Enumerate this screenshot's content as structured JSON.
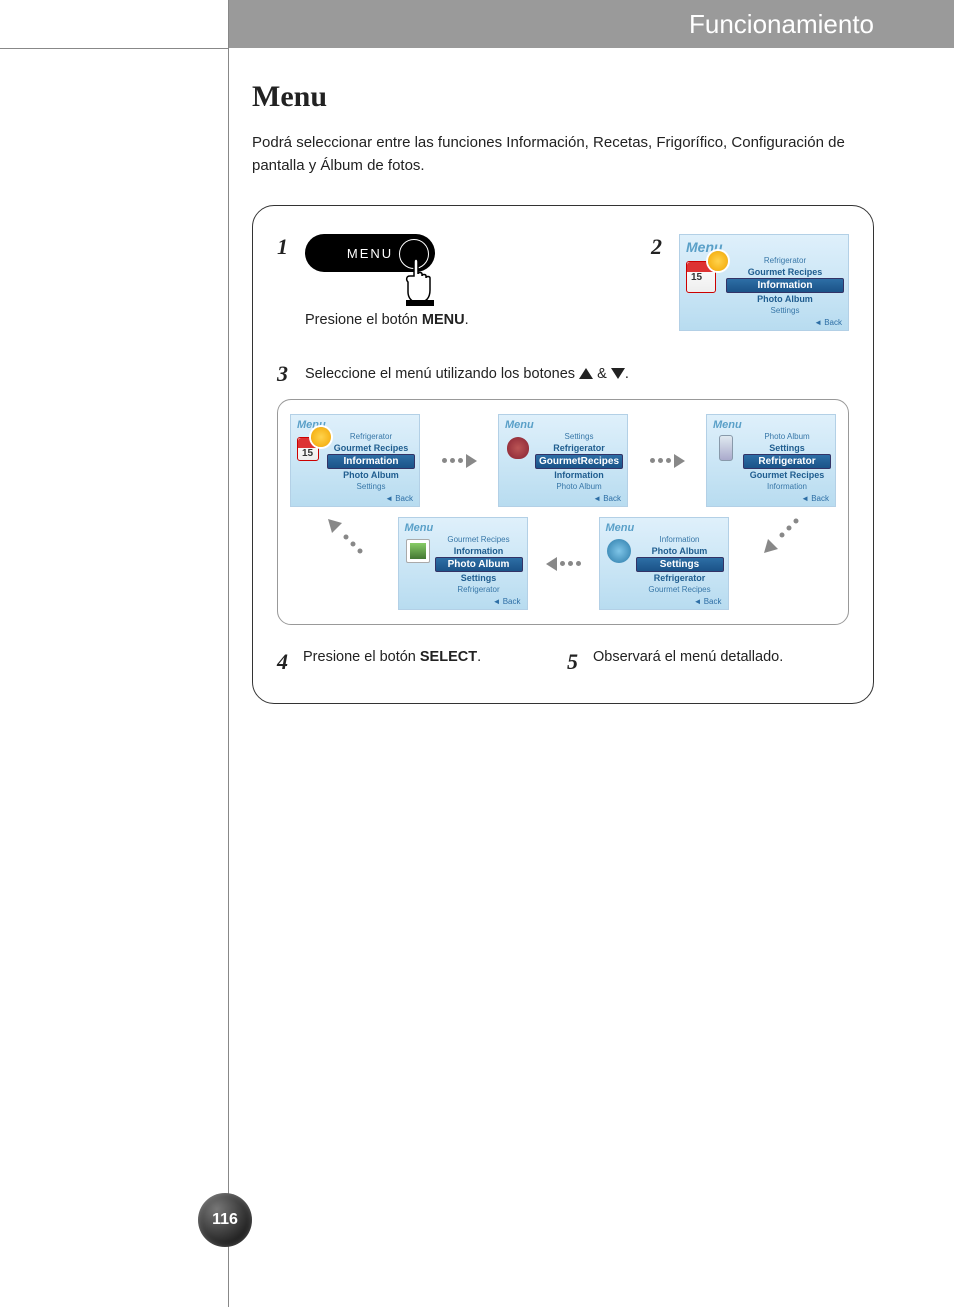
{
  "header": {
    "title": "Funcionamiento"
  },
  "page": {
    "title": "Menu",
    "intro": "Podrá seleccionar entre las funciones Información, Recetas, Frigorífico, Configuración de pantalla y Álbum de fotos.",
    "number": "116"
  },
  "steps": {
    "s1": {
      "num": "1",
      "button_label": "MENU",
      "caption_pre": "Presione el botón ",
      "caption_bold": "MENU",
      "caption_post": "."
    },
    "s2": {
      "num": "2"
    },
    "s3": {
      "num": "3",
      "text_pre": "Seleccione el menú utilizando los botones ",
      "amp": " & ",
      "dot": "."
    },
    "s4": {
      "num": "4",
      "text_pre": "Presione el botón ",
      "text_bold": "SELECT",
      "text_post": "."
    },
    "s5": {
      "num": "5",
      "text": "Observará el menú detallado."
    }
  },
  "menu_title": "Menu",
  "back_label": "◄ Back",
  "screens": {
    "main": {
      "items": [
        {
          "label": "Refrigerator",
          "cls": "mi-light"
        },
        {
          "label": "Gourmet Recipes",
          "cls": "mi-med"
        },
        {
          "label": "Information",
          "cls": "mi-sel"
        },
        {
          "label": "Photo Album",
          "cls": "mi-med"
        },
        {
          "label": "Settings",
          "cls": "mi-light"
        }
      ]
    },
    "a": {
      "items": [
        {
          "label": "Refrigerator",
          "cls": "mi-light"
        },
        {
          "label": "Gourmet Recipes",
          "cls": "mi-med"
        },
        {
          "label": "Information",
          "cls": "mi-sel"
        },
        {
          "label": "Photo Album",
          "cls": "mi-med"
        },
        {
          "label": "Settings",
          "cls": "mi-light"
        }
      ]
    },
    "b": {
      "items": [
        {
          "label": "Settings",
          "cls": "mi-light"
        },
        {
          "label": "Refrigerator",
          "cls": "mi-med"
        },
        {
          "label": "GourmetRecipes",
          "cls": "mi-sel"
        },
        {
          "label": "Information",
          "cls": "mi-med"
        },
        {
          "label": "Photo Album",
          "cls": "mi-light"
        }
      ]
    },
    "c": {
      "items": [
        {
          "label": "Photo Album",
          "cls": "mi-light"
        },
        {
          "label": "Settings",
          "cls": "mi-med"
        },
        {
          "label": "Refrigerator",
          "cls": "mi-sel"
        },
        {
          "label": "Gourmet Recipes",
          "cls": "mi-med"
        },
        {
          "label": "Information",
          "cls": "mi-light"
        }
      ]
    },
    "d": {
      "items": [
        {
          "label": "Gourmet Recipes",
          "cls": "mi-light"
        },
        {
          "label": "Information",
          "cls": "mi-med"
        },
        {
          "label": "Photo Album",
          "cls": "mi-sel"
        },
        {
          "label": "Settings",
          "cls": "mi-med"
        },
        {
          "label": "Refrigerator",
          "cls": "mi-light"
        }
      ]
    },
    "e": {
      "items": [
        {
          "label": "Information",
          "cls": "mi-light"
        },
        {
          "label": "Photo Album",
          "cls": "mi-med"
        },
        {
          "label": "Settings",
          "cls": "mi-sel"
        },
        {
          "label": "Refrigerator",
          "cls": "mi-med"
        },
        {
          "label": "Gourmet Recipes",
          "cls": "mi-light"
        }
      ]
    }
  },
  "colors": {
    "header_bg": "#9a9a9a",
    "selected_bg": "#1b5388",
    "screen_bg_top": "#dff0fb",
    "screen_bg_bot": "#b8dcf0"
  }
}
